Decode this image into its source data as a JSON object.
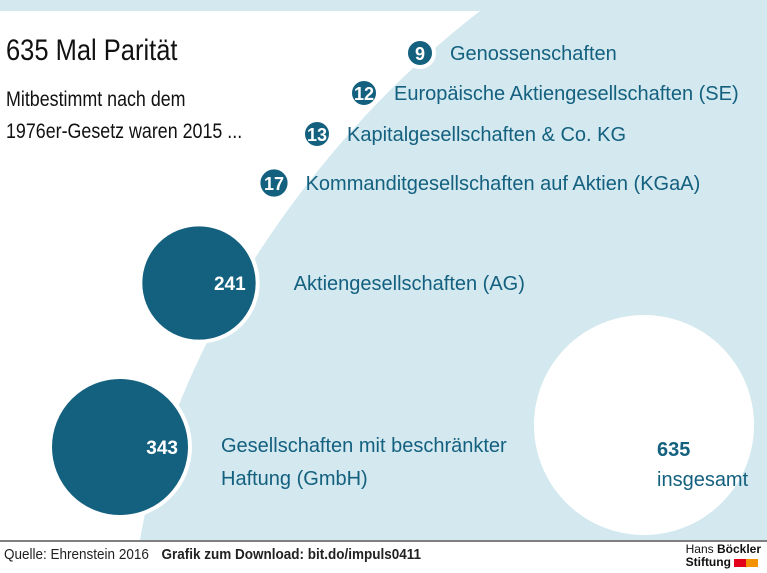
{
  "title": "635 Mal Parität",
  "subtitle_line1": "Mitbestimmt nach dem",
  "subtitle_line2": "1976er-Gesetz waren 2015 ...",
  "colors": {
    "bubble": "#13607f",
    "background_band": "#d3e8ef",
    "label": "#13607f"
  },
  "chart_data": {
    "type": "bubble",
    "categories": [
      "Genossenschaften",
      "Europäische Aktiengesellschaften (SE)",
      "Kapitalgesellschaften & Co. KG",
      "Kommanditgesellschaften auf Aktien (KGaA)",
      "Aktiengesellschaften (AG)",
      "Gesellschaften mit beschränkter Haftung (GmbH)"
    ],
    "values": [
      9,
      12,
      13,
      17,
      241,
      343
    ],
    "total": {
      "value": 635,
      "label": "insgesamt"
    }
  },
  "footer": {
    "source": "Quelle: Ehrenstein 2016",
    "download": "Grafik zum Download: bit.do/impuls0411"
  },
  "logo": {
    "line1a": "Hans",
    "line1b": "Böckler",
    "line2": "Stiftung"
  }
}
